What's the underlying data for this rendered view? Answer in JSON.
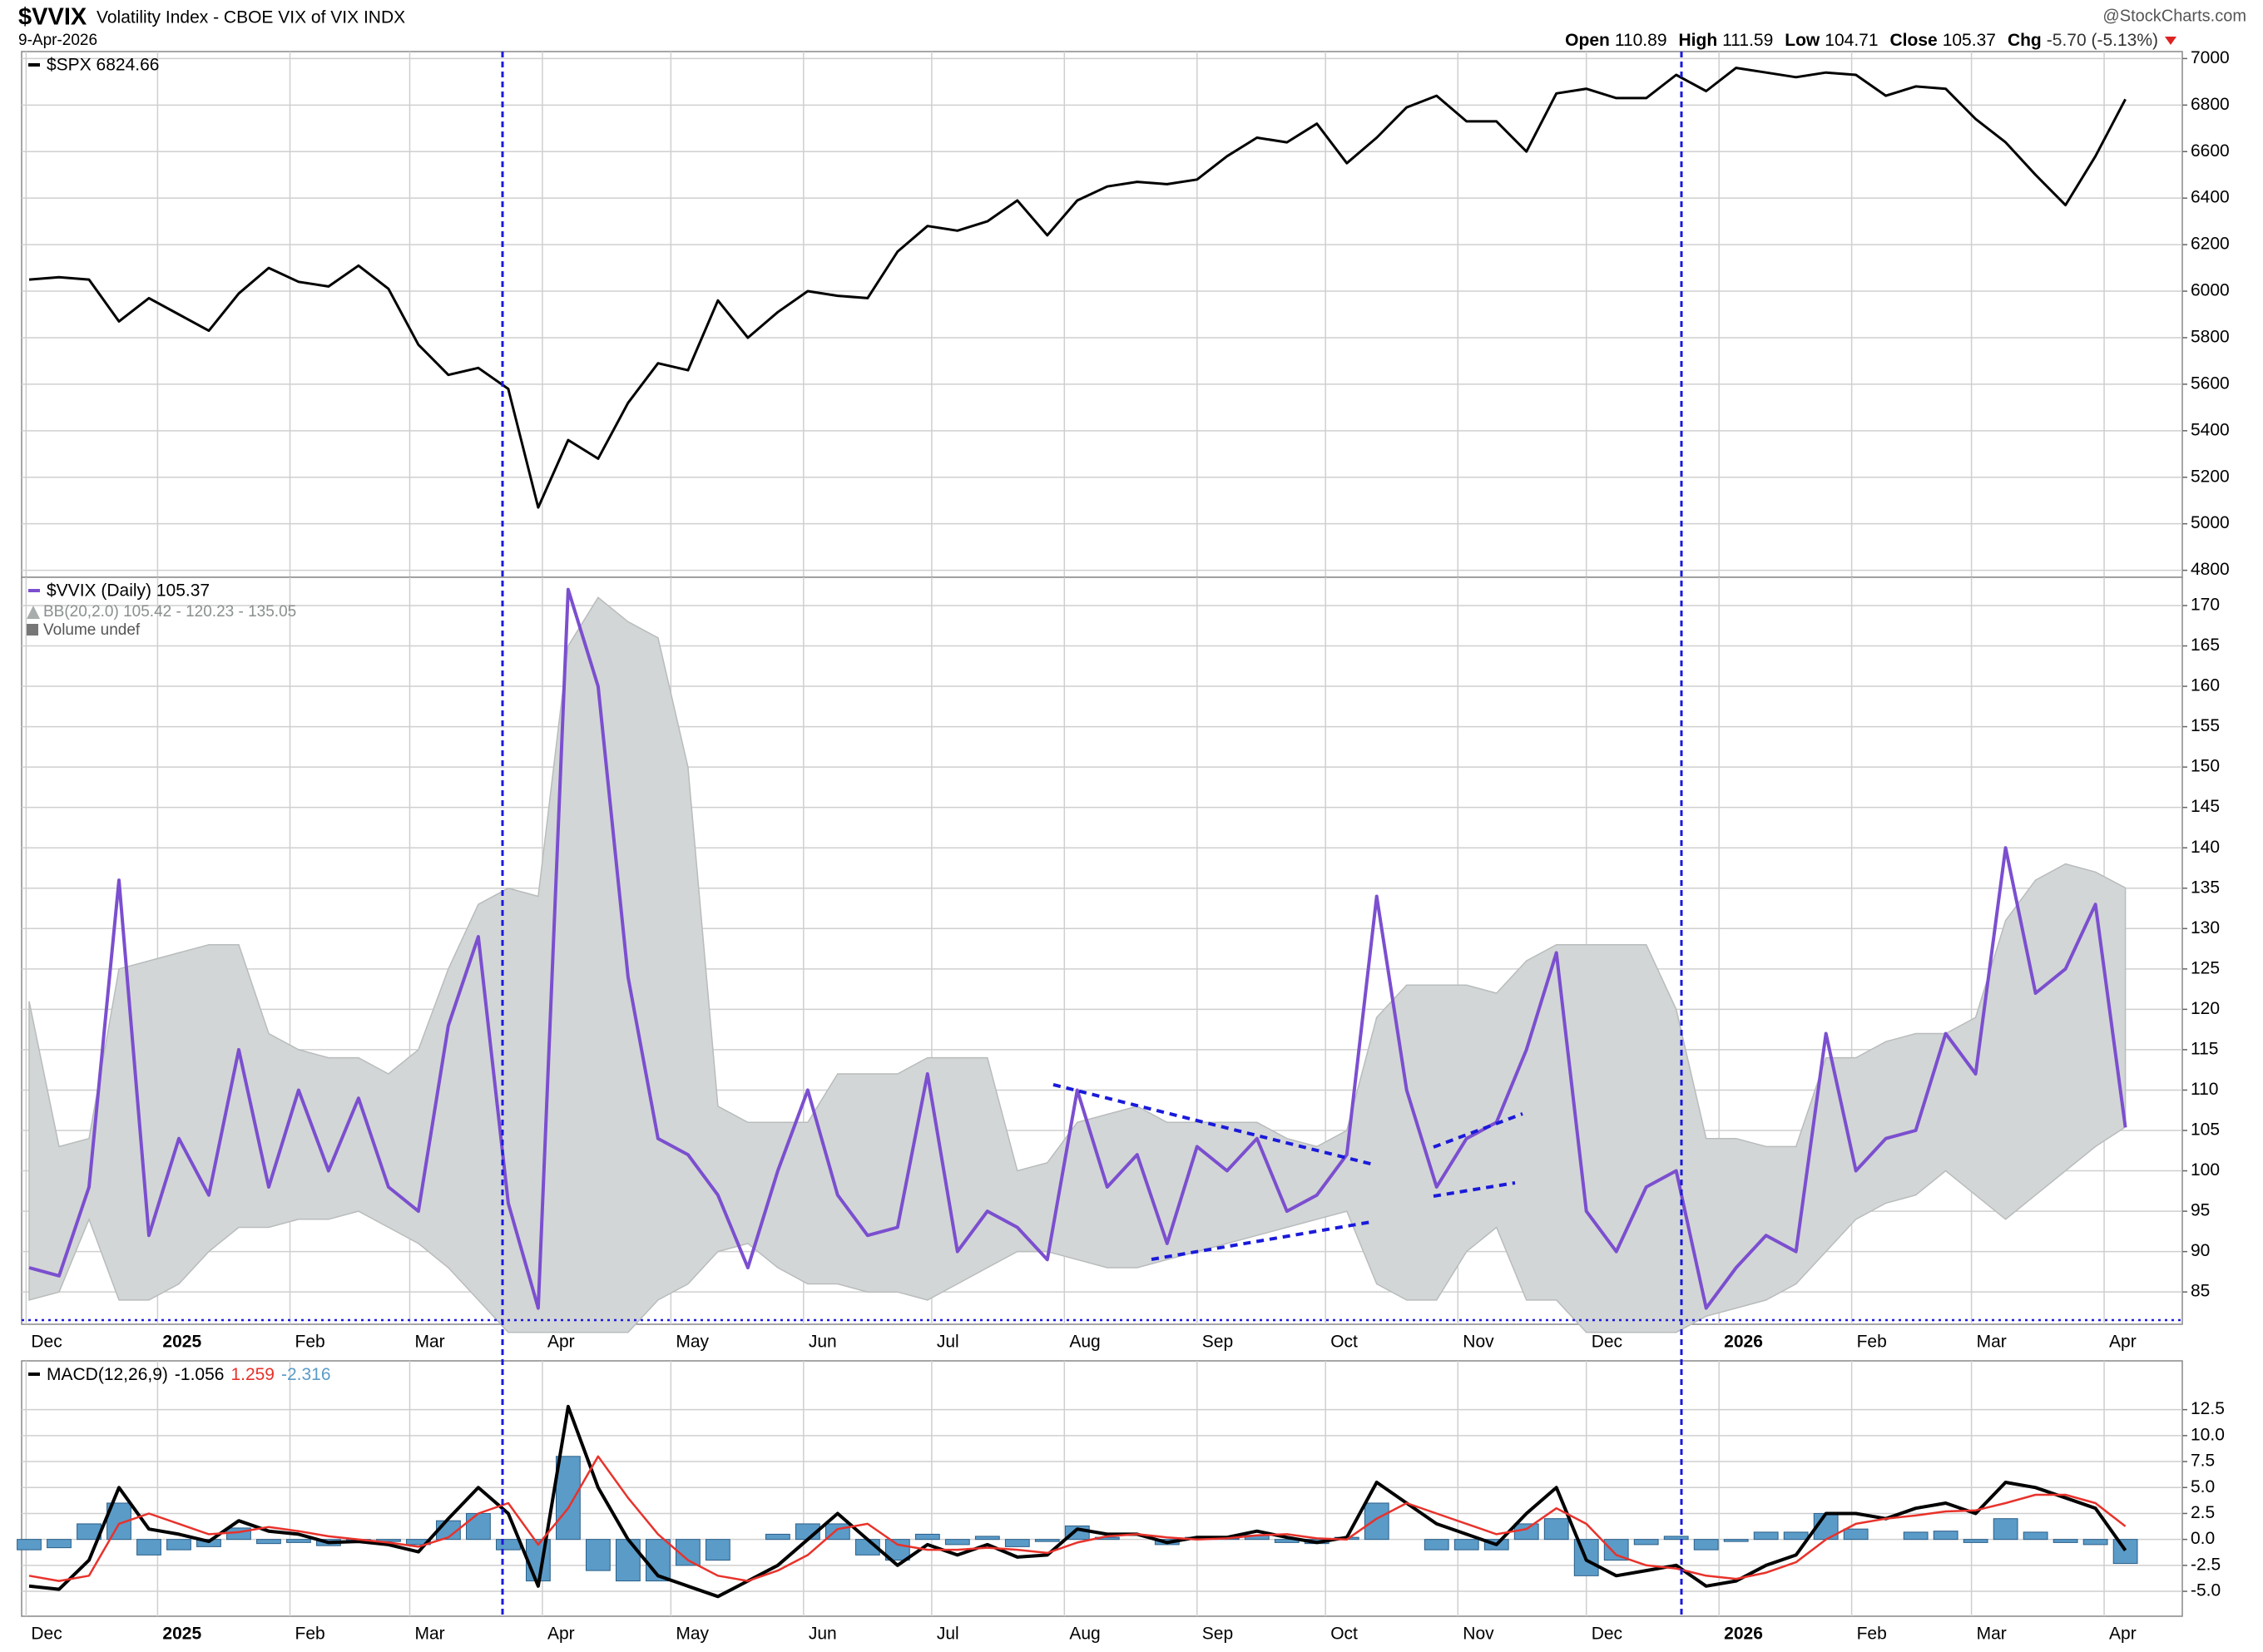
{
  "header": {
    "symbol": "$VVIX",
    "description": "Volatility Index - CBOE VIX of VIX INDX",
    "date": "9-Apr-2026",
    "source": "@StockCharts.com",
    "ohlc": [
      {
        "label": "Open",
        "value": "110.89"
      },
      {
        "label": "High",
        "value": "111.59"
      },
      {
        "label": "Low",
        "value": "104.71"
      },
      {
        "label": "Close",
        "value": "105.37"
      },
      {
        "label": "Chg",
        "value": "-5.70 (-5.13%)"
      }
    ]
  },
  "chart_data": [
    {
      "type": "line",
      "xlim": [
        -0.25,
        71.9
      ],
      "ylim": [
        4770,
        7030
      ],
      "yticks": [
        4800,
        5000,
        5200,
        5400,
        5600,
        5800,
        6000,
        6200,
        6400,
        6600,
        6800,
        7000
      ],
      "series": [
        {
          "name": "$SPX 6824.66",
          "color": "#000000",
          "values": [
            6050,
            6060,
            6050,
            5870,
            5970,
            5900,
            5830,
            5990,
            6100,
            6040,
            6020,
            6110,
            6010,
            5770,
            5640,
            5670,
            5580,
            5070,
            5360,
            5280,
            5520,
            5690,
            5660,
            5960,
            5800,
            5910,
            6000,
            5980,
            5970,
            6170,
            6280,
            6260,
            6300,
            6390,
            6240,
            6390,
            6450,
            6470,
            6460,
            6480,
            6580,
            6660,
            6640,
            6720,
            6550,
            6660,
            6790,
            6840,
            6730,
            6730,
            6600,
            6850,
            6870,
            6830,
            6830,
            6930,
            6860,
            6960,
            6940,
            6920,
            6940,
            6930,
            6840,
            6880,
            6870,
            6740,
            6640,
            6500,
            6370,
            6580,
            6825
          ]
        }
      ]
    },
    {
      "type": "line",
      "xlim": [
        -0.25,
        71.9
      ],
      "ylim": [
        81,
        173.5
      ],
      "yticks": [
        85,
        90,
        95,
        100,
        105,
        110,
        115,
        120,
        125,
        130,
        135,
        140,
        145,
        150,
        155,
        160,
        165,
        170
      ],
      "xticks": [
        {
          "value": -0.1,
          "label": "Dec"
        },
        {
          "value": 4.29,
          "label": "2025"
        },
        {
          "value": 8.71,
          "label": "Feb"
        },
        {
          "value": 12.71,
          "label": "Mar"
        },
        {
          "value": 17.14,
          "label": "Apr"
        },
        {
          "value": 21.43,
          "label": "May"
        },
        {
          "value": 25.86,
          "label": "Jun"
        },
        {
          "value": 30.14,
          "label": "Jul"
        },
        {
          "value": 34.57,
          "label": "Aug"
        },
        {
          "value": 39,
          "label": "Sep"
        },
        {
          "value": 43.29,
          "label": "Oct"
        },
        {
          "value": 47.71,
          "label": "Nov"
        },
        {
          "value": 52,
          "label": "Dec"
        },
        {
          "value": 56.43,
          "label": "2026"
        },
        {
          "value": 60.86,
          "label": "Feb"
        },
        {
          "value": 64.86,
          "label": "Mar"
        },
        {
          "value": 69.29,
          "label": "Apr"
        }
      ],
      "series": [
        {
          "name": "$VVIX (Daily) 105.37",
          "color": "#7b4fcf",
          "values": [
            88,
            87,
            98,
            136,
            92,
            104,
            97,
            115,
            98,
            110,
            100,
            109,
            98,
            95,
            118,
            129,
            96,
            83,
            172,
            160,
            124,
            104,
            102,
            97,
            88,
            100,
            110,
            97,
            92,
            93,
            112,
            90,
            95,
            93,
            89,
            110,
            98,
            102,
            91,
            103,
            100,
            104,
            95,
            97,
            102,
            134,
            110,
            98,
            104,
            106,
            115,
            127,
            95,
            90,
            98,
            100,
            83,
            88,
            92,
            90,
            117,
            100,
            104,
            105,
            117,
            112,
            140,
            122,
            125,
            133,
            105.37
          ]
        }
      ],
      "band": {
        "name": "BB(20,2.0) 105.42 - 120.23 - 135.05",
        "color": "#d3d6d6",
        "upper": [
          121,
          103,
          104,
          125,
          126,
          127,
          128,
          128,
          117,
          115,
          114,
          114,
          112,
          115,
          125,
          133,
          135,
          134,
          165,
          171,
          168,
          166,
          150,
          108,
          106,
          106,
          106,
          112,
          112,
          112,
          114,
          114,
          114,
          100,
          101,
          106,
          107,
          108,
          106,
          106,
          106,
          106,
          104,
          103,
          105,
          119,
          123,
          123,
          123,
          122,
          126,
          128,
          128,
          128,
          128,
          120,
          104,
          104,
          103,
          103,
          114,
          114,
          116,
          117,
          117,
          119,
          131,
          136,
          138,
          137,
          135.05
        ],
        "lower": [
          84,
          85,
          94,
          84,
          84,
          86,
          90,
          93,
          93,
          94,
          94,
          95,
          93,
          91,
          88,
          84,
          80,
          80,
          80,
          80,
          80,
          84,
          86,
          90,
          91,
          88,
          86,
          86,
          85,
          85,
          84,
          86,
          88,
          90,
          90,
          89,
          88,
          88,
          89,
          90,
          91,
          92,
          93,
          94,
          95,
          86,
          84,
          84,
          90,
          93,
          84,
          84,
          80,
          80,
          80,
          80,
          82,
          83,
          84,
          86,
          90,
          94,
          96,
          97,
          100,
          97,
          94,
          97,
          100,
          103,
          105.42
        ]
      },
      "volume_label": "Volume undef"
    },
    {
      "type": "macd",
      "xlim": [
        -0.25,
        71.9
      ],
      "ylim": [
        -7.4,
        17.2
      ],
      "legend_label": "MACD(12,26,9)",
      "yticks": [
        {
          "value": -5,
          "label": "-5.0"
        },
        {
          "value": -2.5,
          "label": "-2.5"
        },
        {
          "value": 0,
          "label": "0.0"
        },
        {
          "value": 2.5,
          "label": "2.5"
        },
        {
          "value": 5,
          "label": "5.0"
        },
        {
          "value": 7.5,
          "label": "7.5"
        },
        {
          "value": 10,
          "label": "10.0"
        },
        {
          "value": 12.5,
          "label": "12.5"
        }
      ],
      "series": [
        {
          "color": "#5b9bc8",
          "kind": "histogram",
          "values": [
            -1,
            -0.8,
            1.5,
            3.5,
            -1.5,
            -1,
            -0.7,
            1.1,
            -0.4,
            -0.3,
            -0.6,
            -0.2,
            -0.2,
            -0.5,
            1.8,
            2.5,
            -1,
            -4,
            8,
            -3,
            -4,
            -4,
            -2.5,
            -2,
            0,
            0.5,
            1.5,
            1.5,
            -1.5,
            -2,
            0.5,
            -0.5,
            0.3,
            -0.7,
            -0.2,
            1.3,
            0.2,
            0,
            -0.5,
            0.2,
            0.1,
            0.4,
            -0.3,
            -0.4,
            0.2,
            3.5,
            0,
            -1,
            -1,
            -1,
            1.5,
            2,
            -3.5,
            -2,
            -0.5,
            0.3,
            -1,
            -0.2,
            0.7,
            0.7,
            2.5,
            1,
            0,
            0.7,
            0.8,
            -0.3,
            2,
            0.7,
            -0.3,
            -0.5,
            -2.316
          ]
        },
        {
          "color": "#000000",
          "kind": "line",
          "values": [
            -4.5,
            -4.8,
            -2,
            5,
            1,
            0.5,
            -0.2,
            1.8,
            0.8,
            0.5,
            -0.3,
            -0.2,
            -0.5,
            -1.2,
            2,
            5,
            2.5,
            -4.5,
            12.8,
            5,
            0,
            -3.5,
            -4.5,
            -5.5,
            -4,
            -2.5,
            0,
            2.5,
            0,
            -2.5,
            -0.5,
            -1.5,
            -0.5,
            -1.7,
            -1.5,
            1,
            0.5,
            0.5,
            -0.3,
            0.2,
            0.2,
            0.8,
            0.2,
            -0.3,
            0.2,
            5.5,
            3.5,
            1.5,
            0.5,
            -0.5,
            2.5,
            5,
            -2,
            -3.5,
            -3,
            -2.5,
            -4.5,
            -4,
            -2.5,
            -1.5,
            2.5,
            2.5,
            2,
            3,
            3.5,
            2.5,
            5.5,
            5,
            4,
            3,
            -1.056
          ]
        },
        {
          "color": "#e8322b",
          "kind": "line",
          "values": [
            -3.5,
            -4,
            -3.5,
            1.5,
            2.5,
            1.5,
            0.5,
            0.7,
            1.2,
            0.8,
            0.3,
            0,
            -0.3,
            -0.7,
            0.2,
            2.5,
            3.5,
            -0.5,
            3,
            8,
            4,
            0.5,
            -2,
            -3.5,
            -4,
            -3,
            -1.5,
            1,
            1.5,
            -0.5,
            -1,
            -1,
            -0.8,
            -1,
            -1.3,
            -0.3,
            0.3,
            0.5,
            0.2,
            0,
            0.1,
            0.4,
            0.5,
            0.1,
            0,
            2,
            3.5,
            2.5,
            1.5,
            0.5,
            1,
            3,
            1.5,
            -1.5,
            -2.5,
            -2.8,
            -3.5,
            -3.8,
            -3.2,
            -2.2,
            0,
            1.5,
            2,
            2.3,
            2.7,
            2.8,
            3.5,
            4.3,
            4.3,
            3.5,
            1.259
          ]
        }
      ]
    }
  ]
}
